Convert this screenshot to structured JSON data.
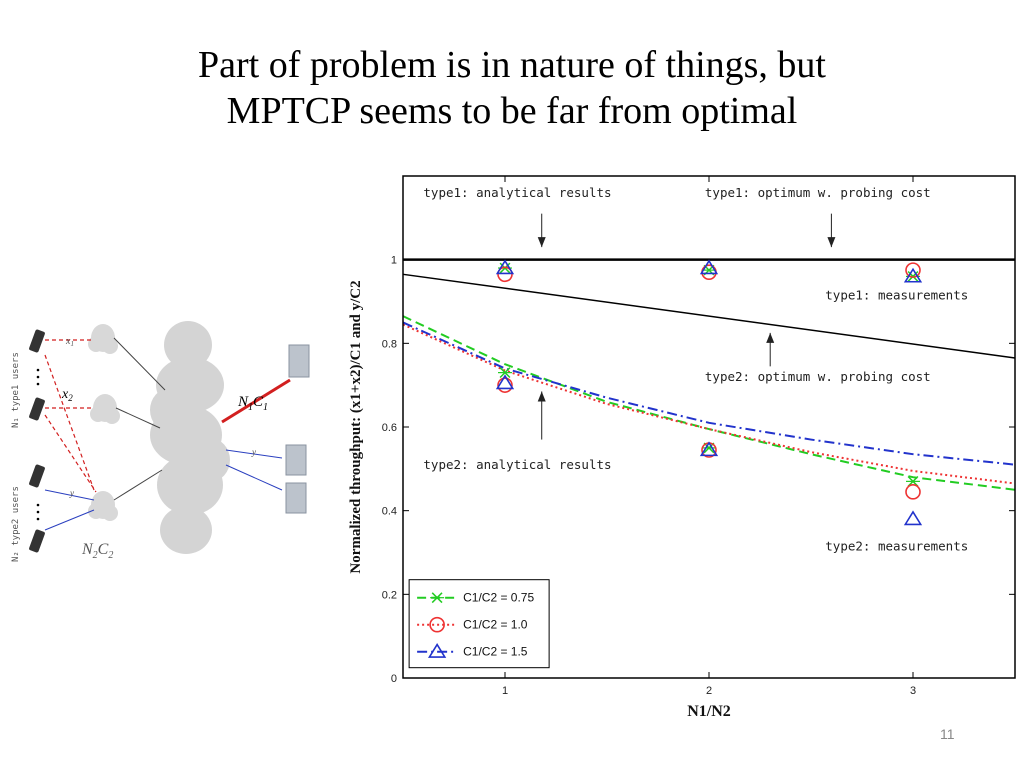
{
  "slide": {
    "title_line1": "Part of problem is in nature of things, but",
    "title_line2": "MPTCP seems to be far from optimal",
    "page_number": "11"
  },
  "diagram": {
    "label_x1": "x",
    "label_x1_sub": "1",
    "label_x2": "x",
    "label_x2_sub": "2",
    "label_y": "y",
    "label_type1_users": "N₁ type1 users",
    "label_type2_users": "N₂ type2 users",
    "label_n1c1": "N",
    "label_n1c1_sub1": "1",
    "label_n1c1_c": "C",
    "label_n1c1_sub2": "1",
    "label_n2c2": "N",
    "label_n2c2_sub1": "2",
    "label_n2c2_c": "C",
    "label_n2c2_sub2": "2",
    "colors": {
      "red_link": "#d21f1f",
      "blue_link": "#2a3fbf",
      "cloud": "#d4d4d4"
    }
  },
  "chart_data": {
    "type": "line",
    "xlabel": "N1/N2",
    "ylabel": "Normalized throughput: (x1+x2)/C1 and y/C2",
    "xlim": [
      0.5,
      3.5
    ],
    "ylim": [
      0,
      1.2
    ],
    "xticks": [
      1,
      2,
      3
    ],
    "yticks": [
      0,
      0.2,
      0.4,
      0.6,
      0.8,
      1
    ],
    "ytick_labels": [
      "0",
      "0.2",
      "0.4",
      "0.6",
      "0.8",
      "1"
    ],
    "grid": false,
    "legend_position": "lower-left",
    "legend": [
      {
        "label": "C1/C2 = 0.75",
        "color": "#22cc22",
        "marker": "x",
        "dash": "dashed"
      },
      {
        "label": "C1/C2 = 1.0",
        "color": "#ee3333",
        "marker": "o",
        "dash": "dotted"
      },
      {
        "label": "C1/C2 = 1.5",
        "color": "#2233cc",
        "marker": "triangle",
        "dash": "dash-dot"
      }
    ],
    "reference_lines": [
      {
        "name": "type1: optimum w. probing cost",
        "color": "#000000",
        "x": [
          0.5,
          3.5
        ],
        "y": [
          1.0,
          1.0
        ],
        "width": 2.5
      },
      {
        "name": "type2: optimum w. probing cost",
        "color": "#000000",
        "x": [
          0.5,
          3.5
        ],
        "y": [
          0.965,
          0.765
        ],
        "width": 1.5
      }
    ],
    "series": [
      {
        "name": "C1/C2 = 0.75",
        "color": "#22cc22",
        "dash": "dashed",
        "x": [
          0.5,
          1,
          1.5,
          2,
          2.5,
          3,
          3.5
        ],
        "y": [
          0.865,
          0.75,
          0.66,
          0.595,
          0.535,
          0.48,
          0.45
        ],
        "points_type1": [
          [
            1,
            0.98
          ],
          [
            2,
            0.975
          ],
          [
            3,
            0.96
          ]
        ],
        "points_type2": [
          [
            1,
            0.73
          ],
          [
            2,
            0.55
          ],
          [
            3,
            0.47
          ]
        ]
      },
      {
        "name": "C1/C2 = 1.0",
        "color": "#ee3333",
        "dash": "dotted",
        "x": [
          0.5,
          1,
          1.5,
          2,
          2.5,
          3,
          3.5
        ],
        "y": [
          0.845,
          0.735,
          0.655,
          0.595,
          0.54,
          0.495,
          0.465
        ],
        "points_type1": [
          [
            1,
            0.965
          ],
          [
            2,
            0.97
          ],
          [
            3,
            0.975
          ]
        ],
        "points_type2": [
          [
            1,
            0.7
          ],
          [
            2,
            0.545
          ],
          [
            3,
            0.445
          ]
        ]
      },
      {
        "name": "C1/C2 = 1.5",
        "color": "#2233cc",
        "dash": "dash-dot",
        "x": [
          0.5,
          1,
          1.5,
          2,
          2.5,
          3,
          3.5
        ],
        "y": [
          0.85,
          0.74,
          0.67,
          0.61,
          0.57,
          0.535,
          0.51
        ],
        "points_type1": [
          [
            1,
            0.98
          ],
          [
            2,
            0.98
          ],
          [
            3,
            0.96
          ]
        ],
        "points_type2": [
          [
            1,
            0.705
          ],
          [
            2,
            0.545
          ],
          [
            3,
            0.38
          ]
        ]
      }
    ],
    "annotations": [
      {
        "text": "type1: analytical results",
        "x": 0.6,
        "y": 1.15,
        "arrow_x": 1.18,
        "arrow_from": 1.11,
        "arrow_to": 1.03
      },
      {
        "text": "type1: optimum w. probing cost",
        "x": 1.98,
        "y": 1.15,
        "arrow_x": 2.6,
        "arrow_from": 1.11,
        "arrow_to": 1.03
      },
      {
        "text": "type1: measurements",
        "x": 2.57,
        "y": 0.905
      },
      {
        "text": "type2: optimum w. probing cost",
        "x": 1.98,
        "y": 0.71,
        "arrow_x": 2.3,
        "arrow_from": 0.745,
        "arrow_to": 0.825
      },
      {
        "text": "type2: analytical results",
        "x": 0.6,
        "y": 0.5,
        "arrow_x": 1.18,
        "arrow_from": 0.57,
        "arrow_to": 0.685
      },
      {
        "text": "type2: measurements",
        "x": 2.57,
        "y": 0.305
      }
    ]
  }
}
